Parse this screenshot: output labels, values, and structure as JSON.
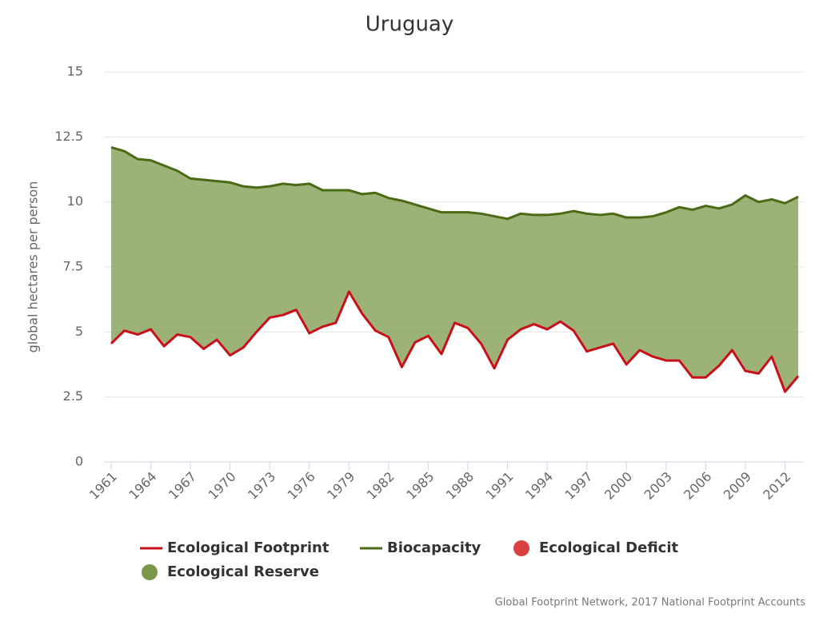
{
  "chart_data": {
    "type": "line",
    "title": "Uruguay",
    "y_label": "global hectares per person",
    "credits": "Global Footprint Network, 2017 National Footprint Accounts",
    "x": [
      1961,
      1962,
      1963,
      1964,
      1965,
      1966,
      1967,
      1968,
      1969,
      1970,
      1971,
      1972,
      1973,
      1974,
      1975,
      1976,
      1977,
      1978,
      1979,
      1980,
      1981,
      1982,
      1983,
      1984,
      1985,
      1986,
      1987,
      1988,
      1989,
      1990,
      1991,
      1992,
      1993,
      1994,
      1995,
      1996,
      1997,
      1998,
      1999,
      2000,
      2001,
      2002,
      2003,
      2004,
      2005,
      2006,
      2007,
      2008,
      2009,
      2010,
      2011,
      2012,
      2013
    ],
    "series": [
      {
        "name": "Ecological Footprint",
        "color": "#c8101a",
        "values": [
          4.55,
          5.05,
          4.9,
          5.1,
          4.45,
          4.9,
          4.8,
          4.35,
          4.7,
          4.1,
          4.4,
          5.0,
          5.55,
          5.65,
          5.85,
          4.95,
          5.2,
          5.35,
          6.55,
          5.7,
          5.05,
          4.8,
          3.65,
          4.6,
          4.85,
          4.15,
          5.35,
          5.15,
          4.55,
          3.6,
          4.7,
          5.1,
          5.3,
          5.1,
          5.4,
          5.05,
          4.25,
          4.4,
          4.55,
          3.75,
          4.3,
          4.05,
          3.9,
          3.9,
          3.25,
          3.25,
          3.7,
          4.3,
          3.5,
          3.4,
          4.05,
          2.7,
          3.3
        ]
      },
      {
        "name": "Biocapacity",
        "color": "#4a6a14",
        "values": [
          12.1,
          11.95,
          11.65,
          11.6,
          11.4,
          11.2,
          10.9,
          10.85,
          10.8,
          10.75,
          10.6,
          10.55,
          10.6,
          10.7,
          10.65,
          10.7,
          10.45,
          10.45,
          10.45,
          10.3,
          10.35,
          10.15,
          10.05,
          9.9,
          9.75,
          9.6,
          9.6,
          9.6,
          9.55,
          9.45,
          9.35,
          9.55,
          9.5,
          9.5,
          9.55,
          9.65,
          9.55,
          9.5,
          9.55,
          9.4,
          9.4,
          9.45,
          9.6,
          9.8,
          9.7,
          9.85,
          9.75,
          9.9,
          10.25,
          10.0,
          10.1,
          9.95,
          10.2
        ]
      }
    ],
    "areas": [
      {
        "name": "Ecological Deficit",
        "color": "#d94040"
      },
      {
        "name": "Ecological Reserve",
        "color": "#7b984a"
      }
    ],
    "xlim": [
      1961,
      2013
    ],
    "xticks": [
      1961,
      1964,
      1967,
      1970,
      1973,
      1976,
      1979,
      1982,
      1985,
      1988,
      1991,
      1994,
      1997,
      2000,
      2003,
      2006,
      2009,
      2012
    ],
    "ylim": [
      0,
      15
    ],
    "yticks": [
      0,
      2.5,
      5,
      7.5,
      10,
      12.5,
      15
    ],
    "grid": true
  }
}
